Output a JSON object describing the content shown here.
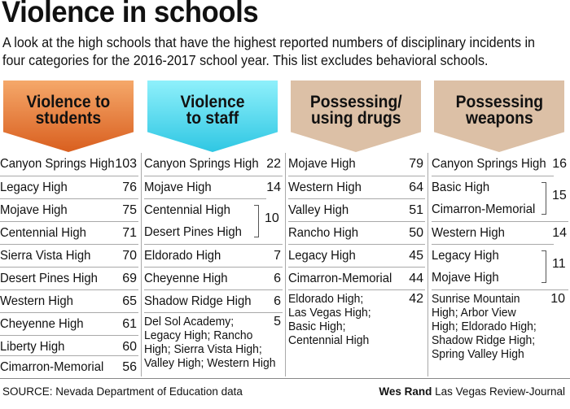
{
  "title": "Violence in schools",
  "subtitle_line1": "A look at the high schools that have the highest reported numbers of disciplinary incidents in",
  "subtitle_line2": "four categories for the 2016-2017 school year. This list excludes behavioral schools.",
  "columns": [
    {
      "header_line1": "Violence to",
      "header_line2": "students",
      "color": "#e8772e",
      "rows": [
        {
          "name": "Canyon Springs High",
          "value": "103"
        },
        {
          "name": "Legacy High",
          "value": "76"
        },
        {
          "name": "Mojave High",
          "value": "75"
        },
        {
          "name": "Centennial High",
          "value": "71"
        },
        {
          "name": "Sierra Vista High",
          "value": "70"
        },
        {
          "name": "Desert Pines High",
          "value": "69"
        },
        {
          "name": "Western High",
          "value": "65"
        },
        {
          "name": "Cheyenne High",
          "value": "61"
        },
        {
          "name": "Liberty High",
          "value": "60"
        },
        {
          "name": "Cimarron-Memorial",
          "value": "56"
        }
      ]
    },
    {
      "header_line1": "Violence",
      "header_line2": "to staff",
      "color": "#43d3ea",
      "rows": [
        {
          "name": "Canyon Springs High",
          "value": "22"
        },
        {
          "name": "Mojave High",
          "value": "14"
        },
        {
          "name": "Centennial High",
          "value": ""
        },
        {
          "name": "Desert Pines High",
          "value": ""
        },
        {
          "name": "Eldorado High",
          "value": "7"
        },
        {
          "name": "Cheyenne High",
          "value": "6"
        },
        {
          "name": "Shadow Ridge High",
          "value": "6"
        }
      ],
      "group_value": "10",
      "multi_lines": [
        "Del Sol Academy;",
        "Legacy High; Rancho",
        "High; Sierra Vista High;",
        "Valley High; Western High"
      ],
      "multi_value": "5"
    },
    {
      "header_line1": "Possessing/",
      "header_line2": "using drugs",
      "color": "#dcc0a6",
      "rows": [
        {
          "name": "Mojave High",
          "value": "79"
        },
        {
          "name": "Western High",
          "value": "64"
        },
        {
          "name": "Valley High",
          "value": "51"
        },
        {
          "name": "Rancho High",
          "value": "50"
        },
        {
          "name": "Legacy High",
          "value": "45"
        },
        {
          "name": "Cimarron-Memorial",
          "value": "44"
        }
      ],
      "multi_lines": [
        "Eldorado High;",
        "Las Vegas High;",
        "Basic High;",
        "Centennial High"
      ],
      "multi_value": "42"
    },
    {
      "header_line1": "Possessing",
      "header_line2": "weapons",
      "color": "#dcc0a6",
      "rows": [
        {
          "name": "Canyon Springs High",
          "value": "16"
        },
        {
          "name": "Basic High",
          "value": ""
        },
        {
          "name": "Cimarron-Memorial",
          "value": ""
        },
        {
          "name": "Western High",
          "value": "14"
        },
        {
          "name": "Legacy High",
          "value": ""
        },
        {
          "name": "Mojave High",
          "value": ""
        }
      ],
      "group1_value": "15",
      "group2_value": "11",
      "multi_lines": [
        "Sunrise Mountain",
        "High; Arbor View",
        "High; Eldorado High;",
        "Shadow Ridge High;",
        "Spring Valley High"
      ],
      "multi_value": "10"
    }
  ],
  "source": "SOURCE: Nevada Department of Education data",
  "credit_name": "Wes Rand",
  "credit_org": "Las Vegas Review-Journal"
}
